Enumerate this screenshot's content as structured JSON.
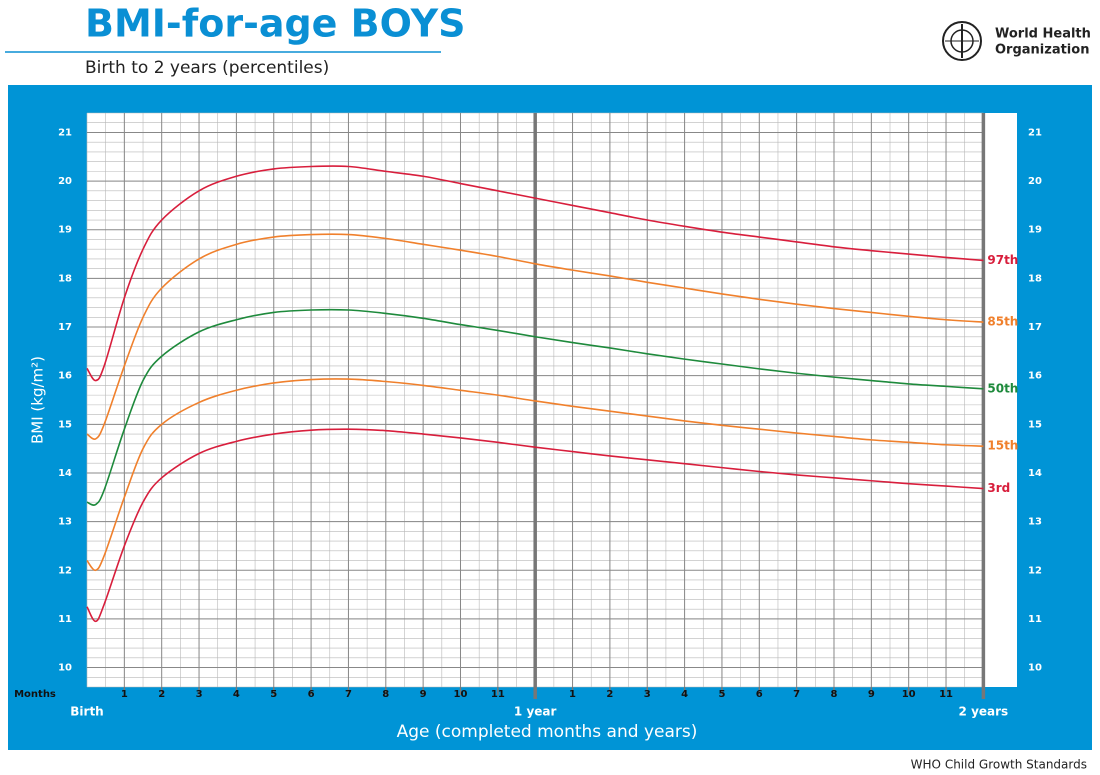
{
  "chart_data": {
    "type": "line",
    "title": "BMI-for-age BOYS",
    "subtitle": "Birth to 2 years (percentiles)",
    "organization": [
      "World Health",
      "Organization"
    ],
    "footer": "WHO Child Growth Standards",
    "x_label": "Age (completed months and years)",
    "y_label": "BMI (kg/m²)",
    "x_unit_label": "Months",
    "x": [
      0,
      0.23,
      0.46,
      1,
      1.5,
      2,
      3,
      4,
      5,
      6,
      7,
      8,
      9,
      10,
      11,
      12,
      13,
      14,
      15,
      16,
      17,
      18,
      19,
      20,
      21,
      22,
      23,
      24
    ],
    "xlim": [
      0,
      24.9
    ],
    "ylim": [
      9.6,
      21.4
    ],
    "xticks": [
      1,
      2,
      3,
      4,
      5,
      6,
      7,
      8,
      9,
      10,
      11,
      {
        "value": 13,
        "label": "1"
      },
      {
        "value": 14,
        "label": "2"
      },
      {
        "value": 15,
        "label": "3"
      },
      {
        "value": 16,
        "label": "4"
      },
      {
        "value": 17,
        "label": "5"
      },
      {
        "value": 18,
        "label": "6"
      },
      {
        "value": 19,
        "label": "7"
      },
      {
        "value": 20,
        "label": "8"
      },
      {
        "value": 21,
        "label": "9"
      },
      {
        "value": 22,
        "label": "10"
      },
      {
        "value": 23,
        "label": "11"
      }
    ],
    "year_ticks": [
      {
        "value": 0,
        "label": "Birth"
      },
      {
        "value": 12,
        "label": "1 year"
      },
      {
        "value": 24,
        "label": "2 years"
      }
    ],
    "yticks": [
      10,
      11,
      12,
      13,
      14,
      15,
      16,
      17,
      18,
      19,
      20,
      21
    ],
    "x_minor_step": 0.5,
    "y_minor_step": 0.2,
    "grid": true,
    "series": [
      {
        "name": "97th",
        "color": "#d81e3c",
        "values": [
          16.15,
          15.9,
          16.2,
          17.6,
          18.6,
          19.2,
          19.8,
          20.1,
          20.25,
          20.3,
          20.3,
          20.2,
          20.1,
          19.95,
          19.8,
          19.65,
          19.5,
          19.35,
          19.2,
          19.07,
          18.95,
          18.85,
          18.75,
          18.65,
          18.57,
          18.5,
          18.43,
          18.37
        ]
      },
      {
        "name": "85th",
        "color": "#f0802c",
        "values": [
          14.8,
          14.7,
          15.0,
          16.2,
          17.2,
          17.8,
          18.4,
          18.7,
          18.85,
          18.9,
          18.9,
          18.82,
          18.7,
          18.58,
          18.45,
          18.3,
          18.17,
          18.05,
          17.92,
          17.8,
          17.68,
          17.57,
          17.47,
          17.38,
          17.3,
          17.22,
          17.15,
          17.1
        ]
      },
      {
        "name": "50th",
        "color": "#1e8a3c",
        "values": [
          13.4,
          13.35,
          13.65,
          14.9,
          15.9,
          16.4,
          16.9,
          17.15,
          17.3,
          17.35,
          17.35,
          17.28,
          17.18,
          17.05,
          16.93,
          16.8,
          16.68,
          16.57,
          16.45,
          16.34,
          16.24,
          16.14,
          16.05,
          15.97,
          15.9,
          15.83,
          15.78,
          15.73
        ]
      },
      {
        "name": "15th",
        "color": "#f0802c",
        "values": [
          12.2,
          12.0,
          12.3,
          13.5,
          14.5,
          15.0,
          15.45,
          15.7,
          15.85,
          15.92,
          15.93,
          15.88,
          15.8,
          15.7,
          15.6,
          15.48,
          15.37,
          15.27,
          15.17,
          15.07,
          14.98,
          14.9,
          14.82,
          14.75,
          14.68,
          14.63,
          14.58,
          14.55
        ]
      },
      {
        "name": "3rd",
        "color": "#d81e3c",
        "values": [
          11.25,
          10.95,
          11.3,
          12.5,
          13.4,
          13.9,
          14.4,
          14.65,
          14.8,
          14.88,
          14.9,
          14.87,
          14.8,
          14.72,
          14.63,
          14.53,
          14.44,
          14.35,
          14.27,
          14.19,
          14.11,
          14.03,
          13.96,
          13.9,
          13.84,
          13.78,
          13.73,
          13.68
        ]
      }
    ]
  }
}
